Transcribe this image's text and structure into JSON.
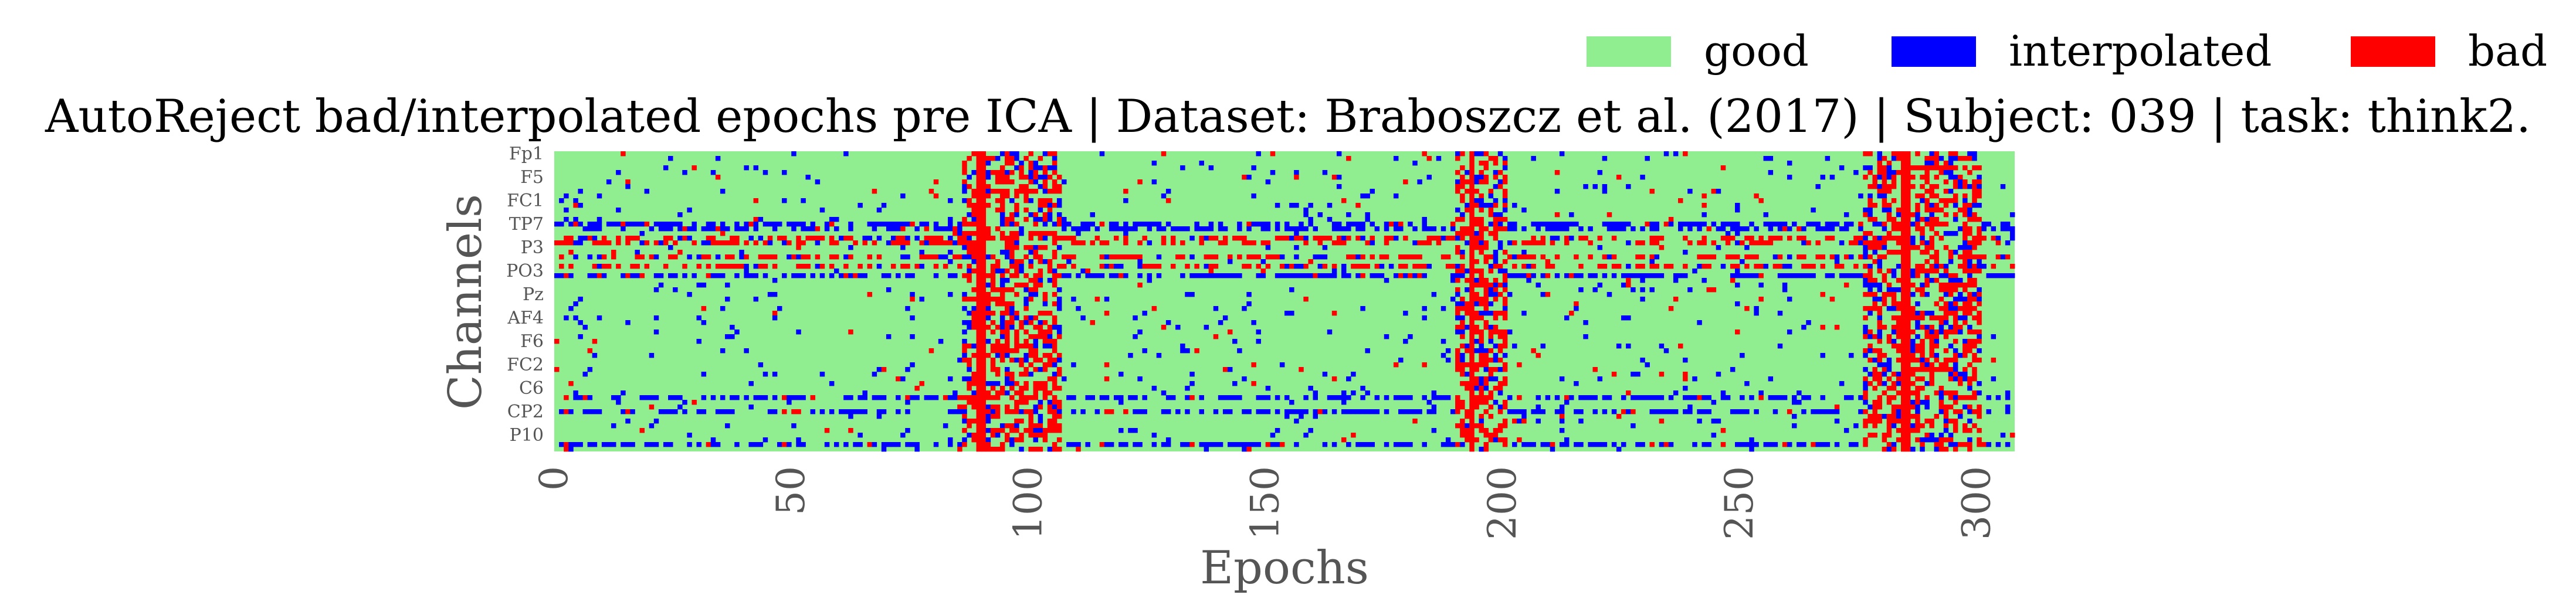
{
  "chart_data": {
    "type": "heatmap",
    "title": "AutoReject bad/interpolated epochs pre ICA | Dataset: Braboszcz et al. (2017) | Subject: 039 | task: think2.",
    "xlabel": "Epochs",
    "ylabel": "Channels",
    "xlim": [
      0,
      308
    ],
    "xticks": [
      0,
      50,
      100,
      150,
      200,
      250,
      300
    ],
    "xtick_labels": [
      "0",
      "50",
      "100",
      "150",
      "200",
      "250",
      "300"
    ],
    "n_epochs": 308,
    "n_channels": 64,
    "ytick_labels": [
      "Fp1",
      "F5",
      "FC1",
      "TP7",
      "P3",
      "PO3",
      "Pz",
      "AF4",
      "F6",
      "FC2",
      "C6",
      "CP2",
      "P10"
    ],
    "ytick_rows": [
      0,
      5,
      10,
      15,
      20,
      25,
      30,
      35,
      40,
      45,
      50,
      55,
      60
    ],
    "legend": {
      "placement": "top-right",
      "entries": [
        {
          "label": "good",
          "color": "#90ee90"
        },
        {
          "label": "interpolated",
          "color": "#0000ff"
        },
        {
          "label": "bad",
          "color": "#ff0000"
        }
      ]
    },
    "bad_epochs": [
      89,
      90,
      193,
      284,
      285
    ],
    "interp_heavy_channels": [
      15,
      16,
      26,
      52,
      55,
      62
    ],
    "bad_heavy_channels": [
      18,
      19,
      22,
      24
    ]
  },
  "colors": {
    "good": "#90ee90",
    "interpolated": "#0000ff",
    "bad": "#ff0000",
    "text": "#555555",
    "title": "#000000"
  }
}
